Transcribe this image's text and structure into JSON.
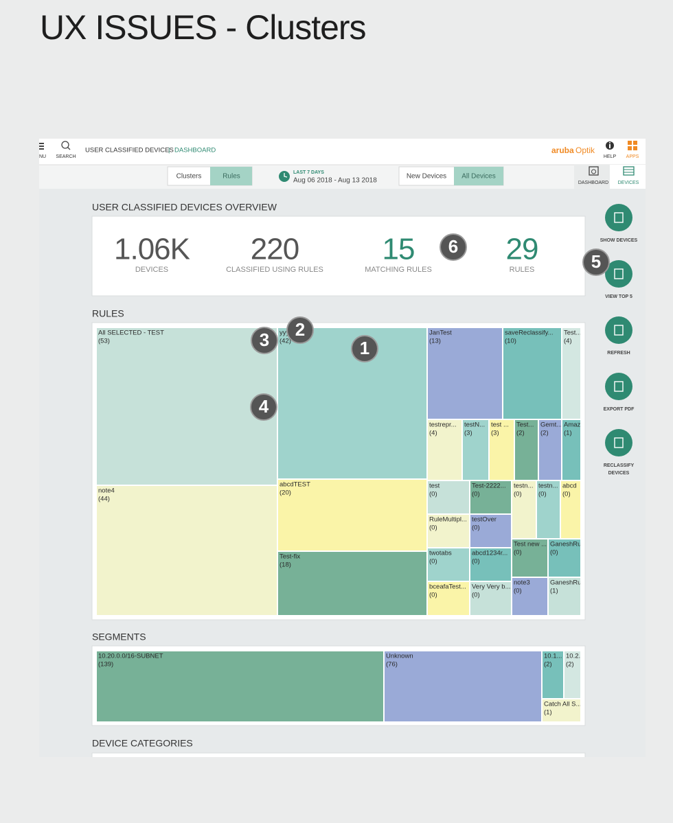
{
  "title": "UX ISSUES - Clusters",
  "header": {
    "menu": "NU",
    "search": "SEARCH",
    "breadcrumb": "USER CLASSIFIED DEVICES",
    "separator": "|",
    "page": "DASHBOARD",
    "brand": "aruba",
    "product": "Optik",
    "help": "HELP",
    "apps": "APPS"
  },
  "toolbar": {
    "view_toggle": [
      "Clusters",
      "Rules"
    ],
    "range_label": "LAST 7 DAYS",
    "range": "Aug 06 2018 - Aug 13 2018",
    "device_toggle": [
      "New Devices",
      "All Devices"
    ],
    "tabs": [
      "DASHBOARD",
      "DEVICES"
    ]
  },
  "overview": {
    "heading": "USER CLASSIFIED DEVICES OVERVIEW",
    "stats": [
      {
        "value": "1.06K",
        "label": "DEVICES"
      },
      {
        "value": "220",
        "label": "CLASSIFIED USING RULES"
      },
      {
        "value": "15",
        "label": "MATCHING RULES"
      },
      {
        "value": "29",
        "label": "RULES"
      }
    ]
  },
  "rules": {
    "heading": "RULES",
    "cells": [
      {
        "label": "All SELECTED - TEST",
        "count": "(53)",
        "color": "#c6e1d9"
      },
      {
        "label": "yyy",
        "count": "(42)",
        "color": "#9fd3cc"
      },
      {
        "label": "note4",
        "count": "(44)",
        "color": "#f2f3cc"
      },
      {
        "label": "abcdTEST",
        "count": "(20)",
        "color": "#faf4a8"
      },
      {
        "label": "Test-fix",
        "count": "(18)",
        "color": "#77b197"
      },
      {
        "label": "JanTest",
        "count": "(13)",
        "color": "#9aaad7"
      },
      {
        "label": "saveReclassify...",
        "count": "(10)",
        "color": "#77c0ba"
      },
      {
        "label": "Test...",
        "count": "(4)",
        "color": "#d3e7e1"
      },
      {
        "label": "testrepr...",
        "count": "(4)",
        "color": "#f2f3cc"
      },
      {
        "label": "testN...",
        "count": "(3)",
        "color": "#9fd3cc"
      },
      {
        "label": "test ...",
        "count": "(3)",
        "color": "#faf4a8"
      },
      {
        "label": "Test...",
        "count": "(2)",
        "color": "#77b197"
      },
      {
        "label": "Gemt...",
        "count": "(2)",
        "color": "#9aaad7"
      },
      {
        "label": "Amaz",
        "count": "(1)",
        "color": "#77c0ba"
      },
      {
        "label": "test",
        "count": "(0)",
        "color": "#c6e1d9"
      },
      {
        "label": "Test-2222...",
        "count": "(0)",
        "color": "#77b197"
      },
      {
        "label": "testn...",
        "count": "(0)",
        "color": "#f2f3cc"
      },
      {
        "label": "testn...",
        "count": "(0)",
        "color": "#9fd3cc"
      },
      {
        "label": "abcd",
        "count": "(0)",
        "color": "#faf4a8"
      },
      {
        "label": "RuleMultipl...",
        "count": "(0)",
        "color": "#f2f3cc"
      },
      {
        "label": "testOver",
        "count": "(0)",
        "color": "#9aaad7"
      },
      {
        "label": "Test new ...",
        "count": "(0)",
        "color": "#77b197"
      },
      {
        "label": "GaneshRu",
        "count": "(0)",
        "color": "#77c0ba"
      },
      {
        "label": "twotabs",
        "count": "(0)",
        "color": "#9fd3cc"
      },
      {
        "label": "abcd1234r...",
        "count": "(0)",
        "color": "#77c0ba"
      },
      {
        "label": "note3",
        "count": "(0)",
        "color": "#9aaad7"
      },
      {
        "label": "GaneshRu",
        "count": "(1)",
        "color": "#c6e1d9"
      },
      {
        "label": "bceafaTest...",
        "count": "(0)",
        "color": "#faf4a8"
      },
      {
        "label": "Very Very b...",
        "count": "(0)",
        "color": "#c6e1d9"
      }
    ]
  },
  "segments": {
    "heading": "SEGMENTS",
    "cells": [
      {
        "label": "10.20.0.0/16-SUBNET",
        "count": "(139)",
        "color": "#77b197"
      },
      {
        "label": "Unknown",
        "count": "(76)",
        "color": "#9aaad7"
      },
      {
        "label": "10.1...",
        "count": "(2)",
        "color": "#77c0ba"
      },
      {
        "label": "10.2...",
        "count": "(2)",
        "color": "#d3e7e1"
      },
      {
        "label": "Catch All S...",
        "count": "(1)",
        "color": "#f2f3cc"
      }
    ]
  },
  "device_categories": {
    "heading": "DEVICE CATEGORIES"
  },
  "actions": [
    [
      "SHOW DEVICES"
    ],
    [
      "VIEW TOP 5"
    ],
    [
      "REFRESH"
    ],
    [
      "EXPORT PDF"
    ],
    [
      "RECLASSIFY",
      "DEVICES"
    ]
  ],
  "annotations": [
    "1",
    "2",
    "3",
    "4",
    "5",
    "6"
  ]
}
